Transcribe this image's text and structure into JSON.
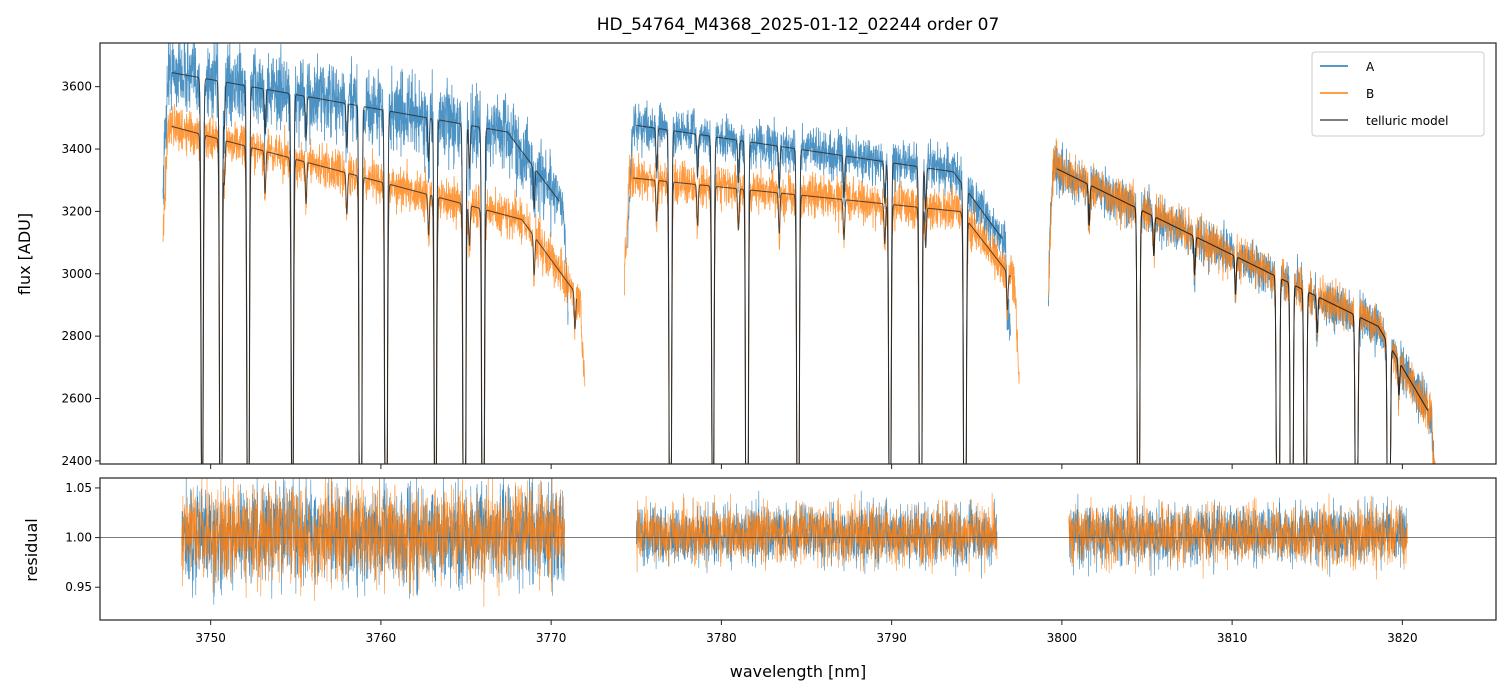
{
  "chart_data": {
    "type": "line",
    "title": "HD_54764_M4368_2025-01-12_02244  order 07",
    "top": {
      "ylabel": "flux [ADU]",
      "ylim": [
        2390,
        3740
      ],
      "yticks": [
        2400,
        2600,
        2800,
        3000,
        3200,
        3400,
        3600
      ],
      "series": [
        {
          "name": "A",
          "color": "#1f77b4",
          "segments": [
            [
              3747.2,
              3771.0,
              3650,
              3420
            ],
            [
              3774.5,
              3797.0,
              3480,
              3300
            ],
            [
              3799.2,
              3822.0,
              3350,
              2740
            ]
          ]
        },
        {
          "name": "B",
          "color": "#ff7f0e",
          "segments": [
            [
              3747.2,
              3772.0,
              3480,
              3120
            ],
            [
              3774.3,
              3797.5,
              3310,
              3180
            ],
            [
              3799.2,
              3822.0,
              3350,
              2740
            ]
          ]
        },
        {
          "name": "telluric model",
          "color": "#333333"
        }
      ],
      "telluric_lines_nm": [
        3749.5,
        3750.6,
        3752.2,
        3754.8,
        3758.8,
        3760.3,
        3763.2,
        3764.9,
        3766.0,
        3777.0,
        3779.5,
        3781.5,
        3784.5,
        3789.9,
        3791.7,
        3794.3,
        3804.5,
        3812.7,
        3813.5,
        3814.3,
        3817.3,
        3819.2
      ]
    },
    "bottom": {
      "ylabel": "residual",
      "ylim": [
        0.917,
        1.06
      ],
      "yticks": [
        "0.95",
        "1.00",
        "1.05"
      ],
      "reference": 1.0,
      "segments": [
        [
          3748.3,
          3770.8
        ],
        [
          3775.0,
          3796.2
        ],
        [
          3800.4,
          3820.3
        ]
      ]
    },
    "xlabel": "wavelength [nm]",
    "xlim": [
      3743.5,
      3825.5
    ],
    "xticks": [
      3750,
      3760,
      3770,
      3780,
      3790,
      3800,
      3810,
      3820
    ],
    "legend": {
      "position": "top-right",
      "entries": [
        "A",
        "B",
        "telluric model"
      ]
    }
  }
}
